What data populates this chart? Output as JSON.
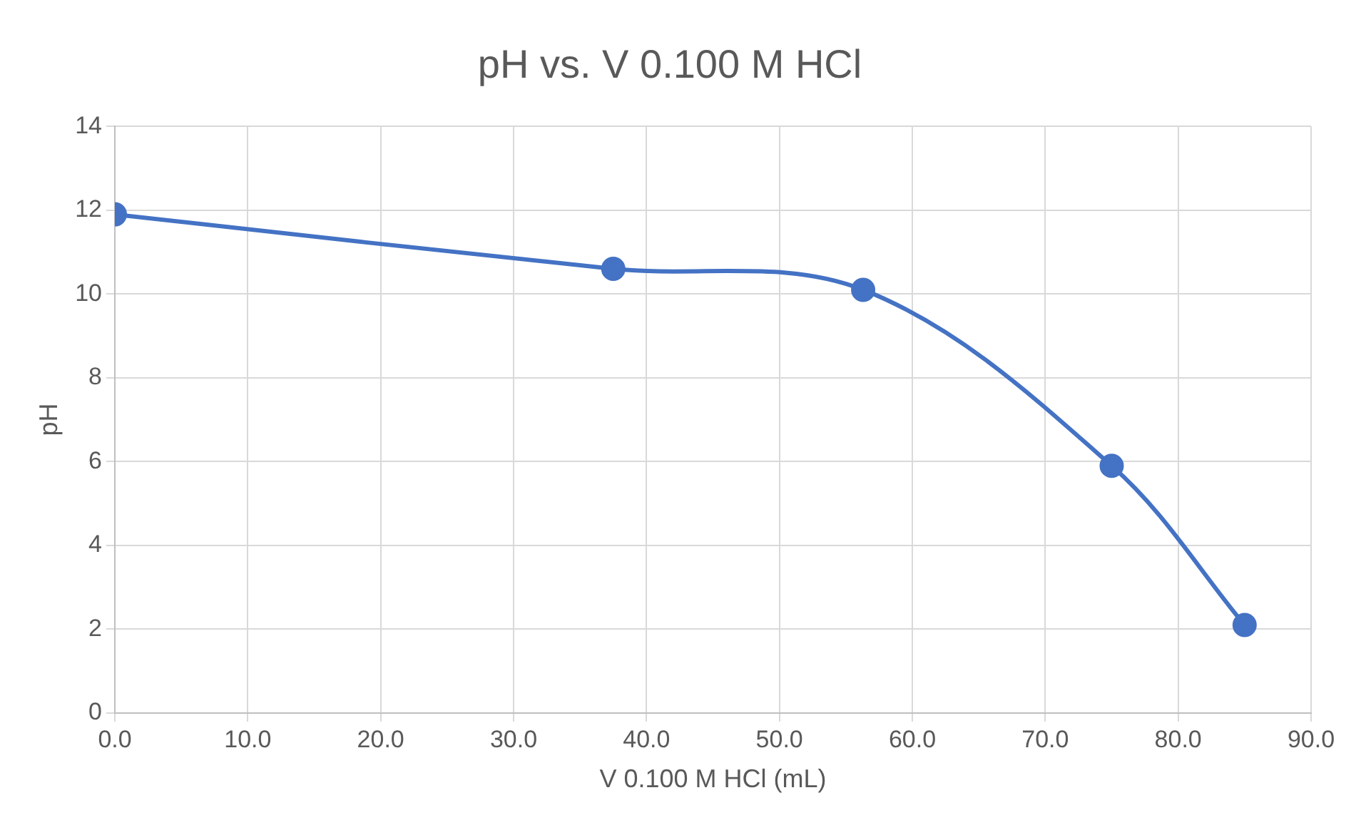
{
  "chart_data": {
    "type": "line",
    "title": "pH vs. V 0.100 M HCl",
    "xlabel": "V 0.100 M HCl (mL)",
    "ylabel": "pH",
    "x": [
      0,
      37.5,
      56.3,
      75,
      85
    ],
    "series": [
      {
        "color": "#4472c4",
        "values": [
          11.9,
          10.6,
          10.1,
          5.9,
          2.1
        ]
      }
    ],
    "xlim": [
      0,
      90
    ],
    "xticks": [
      {
        "value": 0,
        "label": "0.0"
      },
      {
        "value": 10,
        "label": "10.0"
      },
      {
        "value": 20,
        "label": "20.0"
      },
      {
        "value": 30,
        "label": "30.0"
      },
      {
        "value": 40,
        "label": "40.0"
      },
      {
        "value": 50,
        "label": "50.0"
      },
      {
        "value": 60,
        "label": "60.0"
      },
      {
        "value": 70,
        "label": "70.0"
      },
      {
        "value": 80,
        "label": "80.0"
      },
      {
        "value": 90,
        "label": "90.0"
      }
    ],
    "ylim": [
      0,
      14
    ],
    "yticks": [
      0,
      2,
      4,
      6,
      8,
      10,
      12,
      14
    ],
    "grid": true,
    "legend": false,
    "marker": "circle",
    "line_style": "solid"
  }
}
